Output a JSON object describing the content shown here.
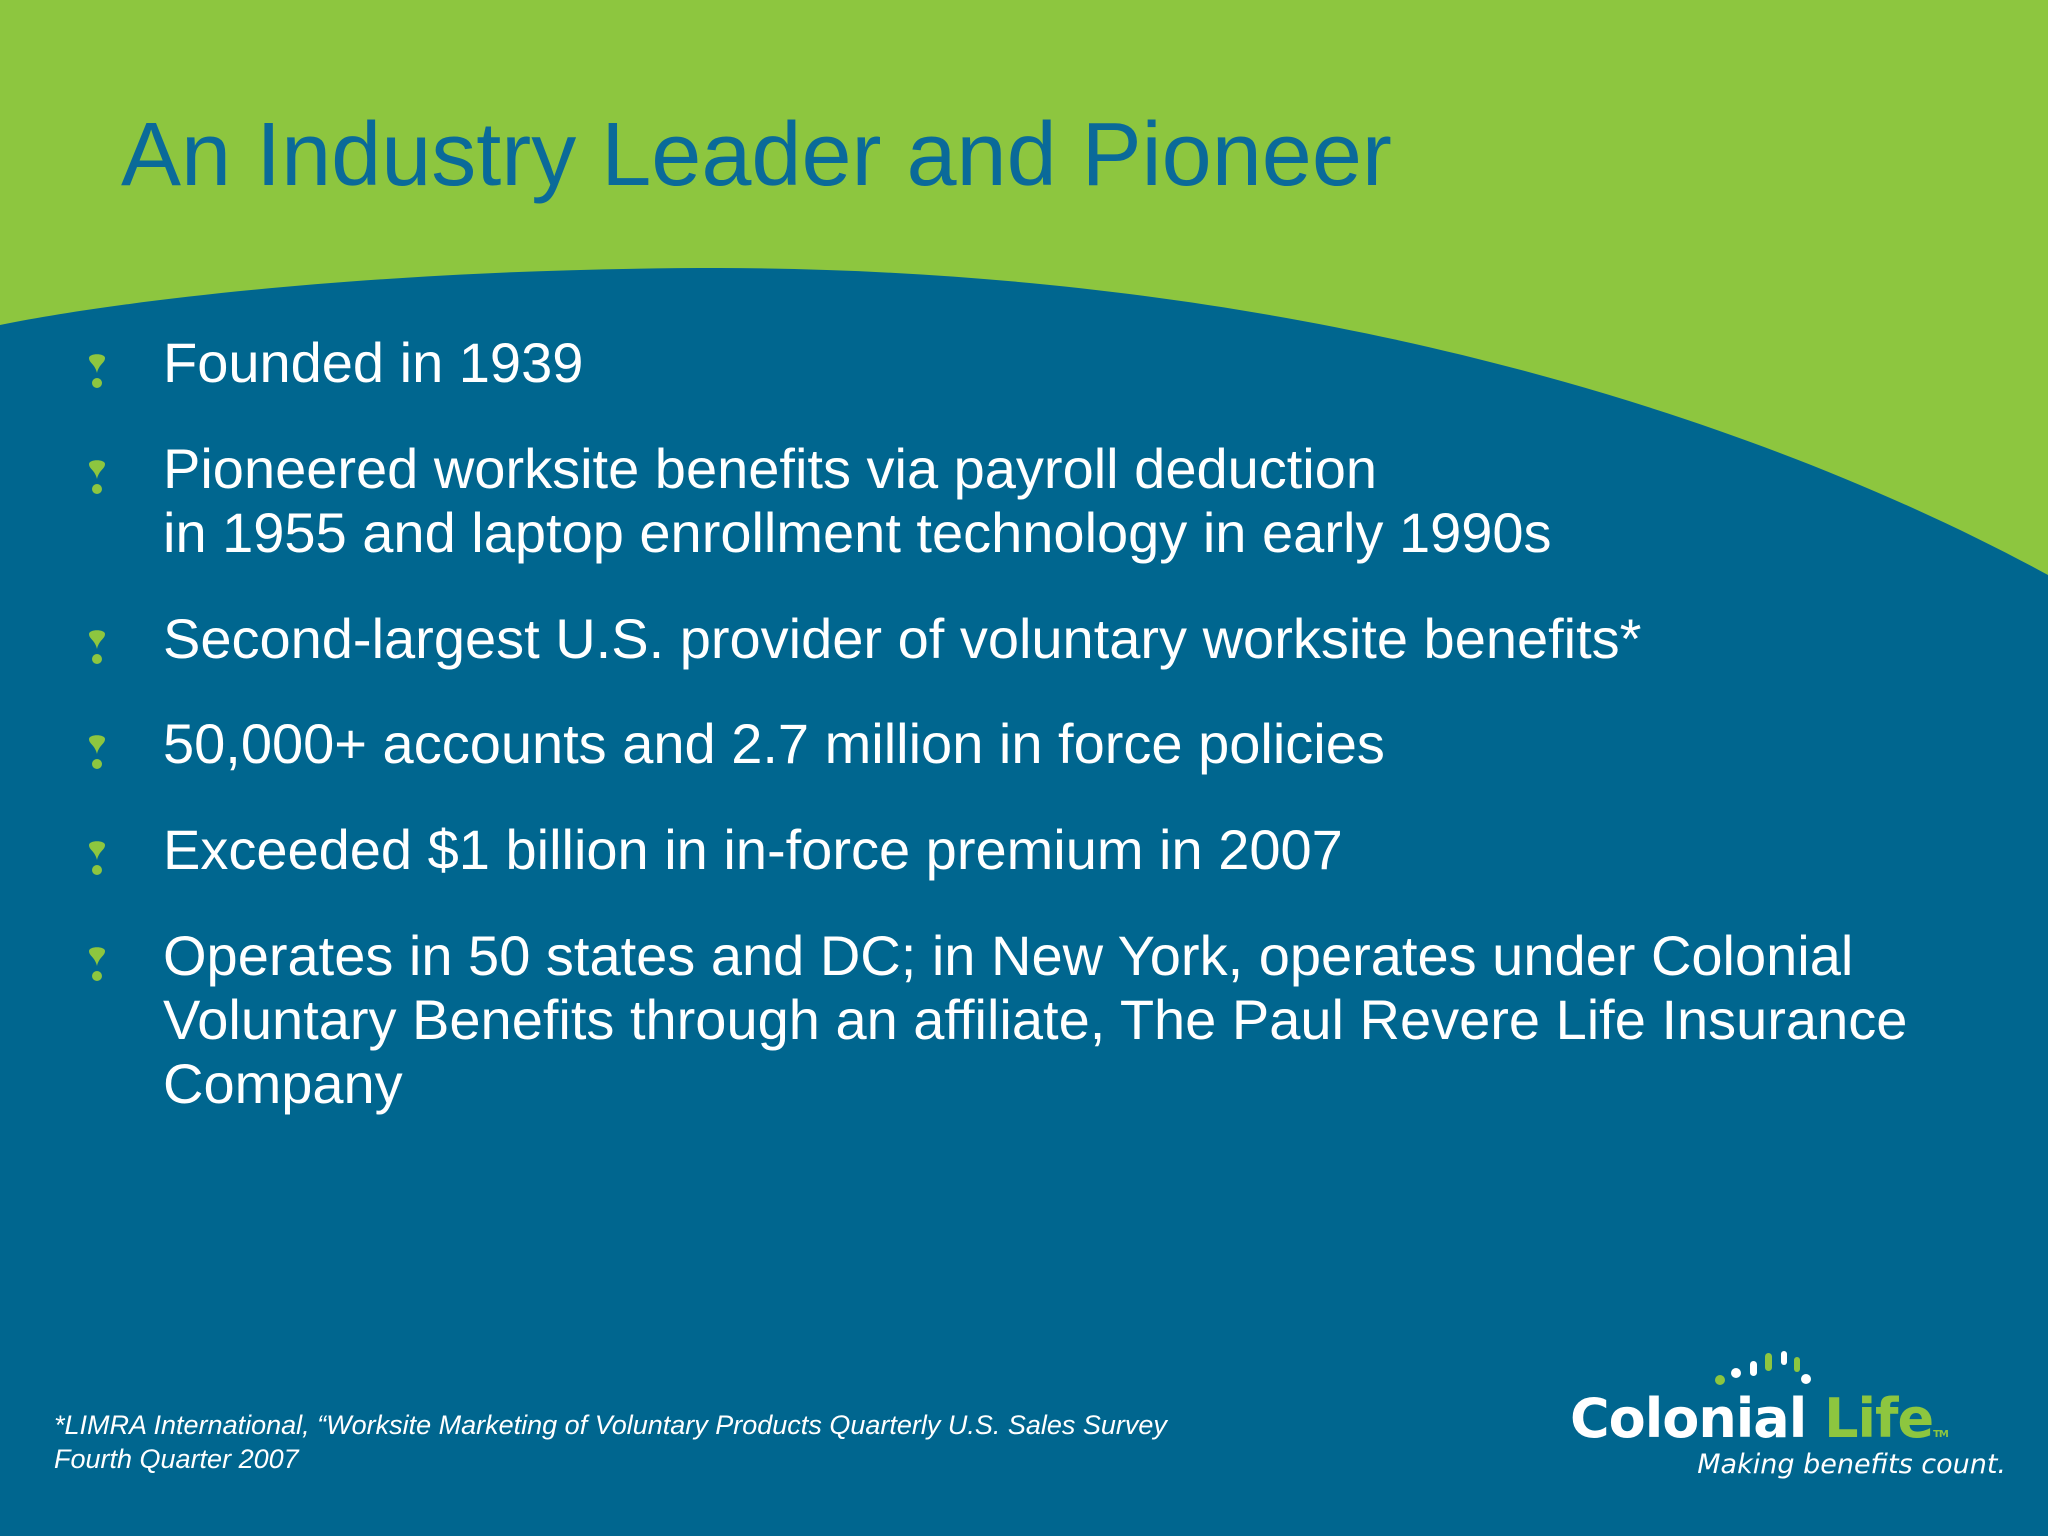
{
  "slide": {
    "title": "An Industry Leader and Pioneer",
    "bullets": [
      {
        "lines": [
          "Founded in 1939"
        ]
      },
      {
        "lines": [
          "Pioneered worksite benefits via payroll deduction",
          "in 1955 and laptop enrollment technology in early 1990s"
        ]
      },
      {
        "lines": [
          "Second-largest U.S. provider of voluntary worksite benefits*"
        ]
      },
      {
        "lines": [
          "50,000+ accounts and 2.7 million in force policies"
        ]
      },
      {
        "lines": [
          "Exceeded $1 billion in in-force premium in 2007"
        ]
      },
      {
        "lines": [
          "Operates in 50 states and DC; in New York, operates under Colonial",
          "Voluntary Benefits through an affiliate, The Paul Revere Life Insurance",
          "Company"
        ]
      }
    ],
    "footnote": {
      "lines": [
        "*LIMRA International, “Worksite Marketing of Voluntary Products Quarterly U.S. Sales Survey",
        "Fourth Quarter 2007"
      ]
    }
  },
  "logo": {
    "word_first": "Colonial",
    "word_second": "Life",
    "tm": "TM",
    "tagline": "Making benefits count."
  },
  "colors": {
    "background_blue": "#00668f",
    "accent_green": "#8dc63f",
    "title_blue": "#0a6a99",
    "text_white": "#ffffff"
  },
  "icons": {
    "bullet": "green-drop-bullet-icon"
  }
}
